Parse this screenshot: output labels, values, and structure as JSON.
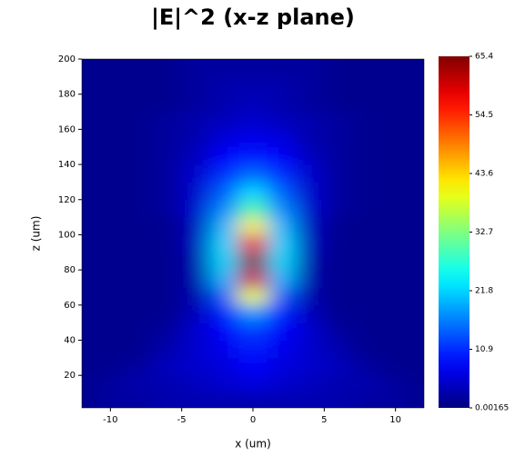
{
  "chart_data": {
    "type": "heatmap",
    "title": "|E|^2 (x-z plane)",
    "x_label": "x (um)",
    "y_label": "z (um)",
    "x": [
      -12,
      -10,
      -8,
      -6,
      -4,
      -2,
      0,
      2,
      4,
      6,
      8,
      10,
      12
    ],
    "y": [
      5,
      15,
      25,
      35,
      45,
      55,
      65,
      75,
      85,
      95,
      105,
      115,
      125,
      135,
      145,
      155,
      165,
      175,
      185,
      195
    ],
    "z": [
      [
        1,
        2,
        2,
        3,
        3,
        3,
        3,
        3,
        3,
        3,
        2,
        2,
        1
      ],
      [
        1,
        2,
        3,
        3,
        4,
        5,
        6,
        5,
        4,
        3,
        3,
        2,
        1
      ],
      [
        1,
        1,
        2,
        4,
        5,
        6,
        8,
        6,
        5,
        4,
        2,
        1,
        1
      ],
      [
        1,
        1,
        1,
        3,
        5,
        7,
        10,
        7,
        5,
        3,
        1,
        1,
        1
      ],
      [
        1,
        1,
        1,
        2,
        5,
        8,
        12,
        8,
        5,
        2,
        1,
        1,
        1
      ],
      [
        1,
        1,
        1,
        1,
        4,
        10,
        18,
        10,
        4,
        1,
        1,
        1,
        1
      ],
      [
        1,
        1,
        1,
        1,
        3,
        14,
        40,
        14,
        3,
        1,
        1,
        1,
        1
      ],
      [
        1,
        1,
        1,
        1,
        3,
        20,
        60,
        20,
        3,
        1,
        1,
        1,
        1
      ],
      [
        1,
        1,
        1,
        1,
        3,
        22,
        65,
        22,
        3,
        1,
        1,
        1,
        1
      ],
      [
        1,
        1,
        1,
        1,
        4,
        22,
        58,
        22,
        4,
        1,
        1,
        1,
        1
      ],
      [
        1,
        1,
        1,
        1,
        4,
        20,
        42,
        20,
        4,
        1,
        1,
        1,
        1
      ],
      [
        1,
        1,
        1,
        2,
        5,
        17,
        30,
        17,
        5,
        2,
        1,
        1,
        1
      ],
      [
        1,
        1,
        1,
        2,
        5,
        14,
        22,
        14,
        5,
        2,
        1,
        1,
        1
      ],
      [
        1,
        1,
        1,
        2,
        5,
        11,
        15,
        11,
        5,
        2,
        1,
        1,
        1
      ],
      [
        1,
        1,
        1,
        2,
        4,
        8,
        10,
        8,
        4,
        2,
        1,
        1,
        1
      ],
      [
        1,
        1,
        1,
        2,
        3,
        6,
        7,
        6,
        3,
        2,
        1,
        1,
        1
      ],
      [
        1,
        1,
        1,
        2,
        3,
        4,
        5,
        4,
        3,
        2,
        1,
        1,
        1
      ],
      [
        1,
        1,
        1,
        1,
        2,
        3,
        4,
        3,
        2,
        1,
        1,
        1,
        1
      ],
      [
        1,
        1,
        1,
        1,
        2,
        3,
        3,
        3,
        2,
        1,
        1,
        1,
        1
      ],
      [
        1,
        1,
        1,
        1,
        2,
        2,
        2,
        2,
        2,
        1,
        1,
        1,
        1
      ]
    ],
    "xlim": [
      -12,
      12
    ],
    "xticks": [
      -10,
      -5,
      0,
      5,
      10
    ],
    "ylim": [
      1.5,
      200
    ],
    "yticks": [
      20,
      40,
      60,
      80,
      100,
      120,
      140,
      160,
      180,
      200
    ],
    "clim": [
      0.00165,
      65.4
    ],
    "cticks": [
      0.00165,
      10.9,
      21.8,
      32.7,
      43.6,
      54.5,
      65.4
    ],
    "colormap": "jet"
  }
}
